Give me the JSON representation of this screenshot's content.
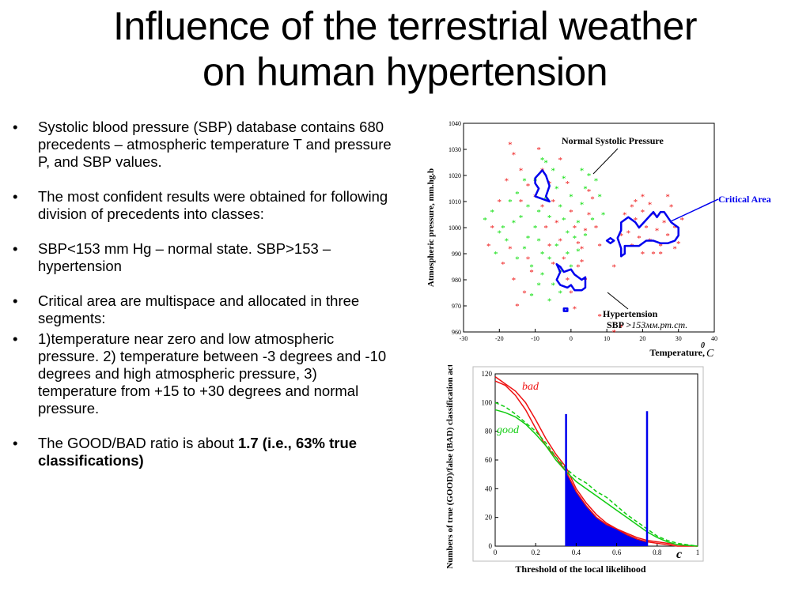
{
  "slide": {
    "title_line1": "Influence of the terrestrial weather",
    "title_line2": "on human hypertension",
    "bullets": [
      "Systolic blood pressure (SBP) database contains 680 precedents – atmospheric temperature T and pressure P, and SBP values.",
      "The most confident results were obtained for following division of precedents into classes:",
      "SBP<153 mm Hg – normal state. SBP>153 – hypertension",
      "Critical area are multispace and allocated in three segments:",
      "1)temperature near zero and low atmospheric pressure. 2) temperature between  -3 degrees and -10 degrees and high atmospheric pressure, 3) temperature from  +15 to +30 degrees and normal pressure."
    ],
    "last_bullet_prefix": "The GOOD/BAD ratio is about ",
    "last_bullet_bold": "1.7 (i.e., 63% true classifications)"
  },
  "chart_data": [
    {
      "type": "scatter",
      "xlabel": "Temperature,",
      "xlabel_unit": "C",
      "xlabel_unit_sup": "0",
      "ylabel": "Atmospheric pressure, mm.hg.b",
      "xlim": [
        -30,
        40
      ],
      "ylim": [
        960,
        1040
      ],
      "xticks": [
        "-30",
        "-20",
        "-10",
        "0",
        "10",
        "20",
        "30",
        "40"
      ],
      "yticks": [
        "960",
        "970",
        "980",
        "990",
        "1000",
        "1010",
        "1020",
        "1030",
        "1040"
      ],
      "annotations": {
        "normal": "Normal Systolic Pressure",
        "critical": "Critical Area",
        "hyper": "Hypertension",
        "sbp_prefix": "SBP >",
        "sbp_value": "153мм.рт.ст."
      },
      "series": [
        {
          "name": "normal",
          "color": "#00dd00",
          "marker": "*",
          "points": [
            [
              -22,
              1006
            ],
            [
              -24,
              1003
            ],
            [
              -20,
              998
            ],
            [
              -18,
              995
            ],
            [
              -21,
              990
            ],
            [
              -15,
              1013
            ],
            [
              -13,
              1018
            ],
            [
              -12,
              1008
            ],
            [
              -10,
              1000
            ],
            [
              -9,
              995
            ],
            [
              -8,
              990
            ],
            [
              -11,
              985
            ],
            [
              -13,
              992
            ],
            [
              -7,
              1025
            ],
            [
              -5,
              1022
            ],
            [
              -4,
              1015
            ],
            [
              -3,
              1008
            ],
            [
              -2,
              1003
            ],
            [
              -1,
              998
            ],
            [
              -4,
              993
            ],
            [
              -6,
              988
            ],
            [
              -8,
              982
            ],
            [
              -5,
              978
            ],
            [
              -3,
              983
            ],
            [
              -1,
              990
            ],
            [
              1,
              996
            ],
            [
              2,
              1002
            ],
            [
              3,
              1009
            ],
            [
              4,
              1015
            ],
            [
              5,
              1020
            ],
            [
              7,
              1018
            ],
            [
              8,
              1012
            ],
            [
              9,
              1005
            ],
            [
              -7,
              1011
            ],
            [
              -6,
              1004
            ],
            [
              -9,
              1006
            ],
            [
              0,
              1012
            ],
            [
              -2,
              1019
            ],
            [
              -14,
              1004
            ],
            [
              -16,
              1002
            ],
            [
              -12,
              996
            ],
            [
              -15,
              988
            ],
            [
              -9,
              978
            ],
            [
              -6,
              972
            ],
            [
              -3,
              975
            ],
            [
              0,
              985
            ],
            [
              2,
              991
            ],
            [
              4,
              997
            ],
            [
              6,
              1003
            ],
            [
              -10,
              1018
            ],
            [
              -8,
              1026
            ],
            [
              3,
              1022
            ],
            [
              -17,
              1010
            ],
            [
              -19,
              1000
            ],
            [
              -11,
              974
            ]
          ]
        },
        {
          "name": "hypertension",
          "color": "#ee1111",
          "marker": "*",
          "points": [
            [
              -17,
              1032
            ],
            [
              -16,
              1028
            ],
            [
              -14,
              1022
            ],
            [
              -12,
              1016
            ],
            [
              -18,
              1018
            ],
            [
              -20,
              1010
            ],
            [
              -22,
              1000
            ],
            [
              -23,
              993
            ],
            [
              -19,
              986
            ],
            [
              -17,
              992
            ],
            [
              -16,
              980
            ],
            [
              -15,
              970
            ],
            [
              -13,
              975
            ],
            [
              -11,
              983
            ],
            [
              -9,
              1030
            ],
            [
              -8,
              1022
            ],
            [
              -6,
              1017
            ],
            [
              -5,
              1010
            ],
            [
              -4,
              1002
            ],
            [
              -3,
              995
            ],
            [
              -2,
              988
            ],
            [
              -1,
              980
            ],
            [
              0,
              975
            ],
            [
              1,
              969
            ],
            [
              2,
              985
            ],
            [
              3,
              992
            ],
            [
              4,
              999
            ],
            [
              5,
              1005
            ],
            [
              6,
              1011
            ],
            [
              -3,
              1026
            ],
            [
              -1,
              1017
            ],
            [
              0,
              1006
            ],
            [
              1,
              1000
            ],
            [
              2,
              994
            ],
            [
              3,
              987
            ],
            [
              4,
              980
            ],
            [
              5,
              1014
            ],
            [
              7,
              1000
            ],
            [
              8,
              993
            ],
            [
              -7,
              1000
            ],
            [
              -6,
              993
            ],
            [
              -5,
              986
            ],
            [
              -8,
              1008
            ],
            [
              -10,
              1012
            ],
            [
              15,
              1005
            ],
            [
              16,
              998
            ],
            [
              17,
              993
            ],
            [
              18,
              1003
            ],
            [
              19,
              996
            ],
            [
              20,
              990
            ],
            [
              21,
              1000
            ],
            [
              22,
              995
            ],
            [
              23,
              1005
            ],
            [
              24,
              999
            ],
            [
              25,
              993
            ],
            [
              26,
              1002
            ],
            [
              27,
              997
            ],
            [
              28,
              1008
            ],
            [
              29,
              1000
            ],
            [
              30,
              994
            ],
            [
              31,
              1003
            ],
            [
              18,
              1010
            ],
            [
              22,
              1009
            ],
            [
              25,
              990
            ],
            [
              27,
              1012
            ],
            [
              14,
              997
            ],
            [
              17,
              1008
            ],
            [
              20,
              1006
            ],
            [
              23,
              990
            ],
            [
              29,
              992
            ],
            [
              12,
              985
            ],
            [
              8,
              966
            ],
            [
              14,
              962
            ],
            [
              12,
              960
            ],
            [
              20,
              1012
            ],
            [
              -14,
              1010
            ],
            [
              -12,
              988
            ]
          ]
        }
      ],
      "critical_regions_color": "#0000ee",
      "critical_regions": [
        [
          [
            -10,
            1019
          ],
          [
            -8,
            1022
          ],
          [
            -7,
            1020
          ],
          [
            -6,
            1016
          ],
          [
            -7,
            1012
          ],
          [
            -6,
            1010
          ],
          [
            -8,
            1011
          ],
          [
            -10,
            1012
          ],
          [
            -9,
            1015
          ],
          [
            -10,
            1017
          ],
          [
            -10,
            1019
          ]
        ],
        [
          [
            -4,
            986
          ],
          [
            -3,
            985
          ],
          [
            -2,
            983
          ],
          [
            0,
            984
          ],
          [
            1,
            982
          ],
          [
            3,
            980
          ],
          [
            4,
            981
          ],
          [
            4,
            977
          ],
          [
            3,
            976
          ],
          [
            1,
            976
          ],
          [
            0,
            978
          ],
          [
            -1,
            977
          ],
          [
            -3,
            978
          ],
          [
            -4,
            980
          ],
          [
            -3,
            983
          ],
          [
            -4,
            986
          ]
        ],
        [
          [
            14,
            1002
          ],
          [
            16,
            1004
          ],
          [
            18,
            1002
          ],
          [
            19,
            1000
          ],
          [
            21,
            1003
          ],
          [
            23,
            1006
          ],
          [
            24,
            1004
          ],
          [
            25,
            1006
          ],
          [
            26,
            1006
          ],
          [
            27,
            1004
          ],
          [
            28,
            1002
          ],
          [
            29,
            1001
          ],
          [
            30,
            1000
          ],
          [
            30,
            997
          ],
          [
            29,
            995
          ],
          [
            27,
            994
          ],
          [
            25,
            994
          ],
          [
            23,
            995
          ],
          [
            21,
            995
          ],
          [
            19,
            993
          ],
          [
            17,
            993
          ],
          [
            15,
            993
          ],
          [
            15,
            990
          ],
          [
            14,
            989
          ],
          [
            14,
            992
          ],
          [
            13,
            996
          ],
          [
            14,
            999
          ],
          [
            14,
            1002
          ]
        ],
        [
          [
            10,
            995
          ],
          [
            11,
            996
          ],
          [
            12,
            995
          ],
          [
            11,
            994
          ],
          [
            10,
            995
          ]
        ],
        [
          [
            -2,
            969
          ],
          [
            -1,
            969
          ],
          [
            -1,
            968
          ],
          [
            -2,
            968
          ],
          [
            -2,
            969
          ]
        ]
      ]
    },
    {
      "type": "line",
      "xlabel": "Threshold of the local likelihood",
      "ylabel": "Numbers of true (GOOD)/false (BAD) classification acts",
      "xlim": [
        0,
        1
      ],
      "ylim": [
        0,
        120
      ],
      "xticks": [
        "0",
        "0.2",
        "0.4",
        "0.6",
        "0.8",
        "1"
      ],
      "yticks": [
        "0",
        "20",
        "40",
        "60",
        "80",
        "100",
        "120"
      ],
      "corner_label": "c",
      "series": [
        {
          "name": "bad",
          "color": "#ee1111",
          "x": [
            0,
            0.05,
            0.1,
            0.15,
            0.2,
            0.25,
            0.3,
            0.35,
            0.4,
            0.45,
            0.5,
            0.55,
            0.6,
            0.65,
            0.7,
            0.75,
            0.8,
            0.85,
            0.9,
            1.0
          ],
          "y": [
            115,
            112,
            105,
            95,
            82,
            70,
            62,
            52,
            38,
            28,
            20,
            15,
            12,
            8,
            5,
            3,
            2,
            1,
            0,
            0
          ]
        },
        {
          "name": "bad_2",
          "color": "#ee1111",
          "x": [
            0,
            0.05,
            0.1,
            0.15,
            0.2,
            0.25,
            0.3,
            0.35,
            0.4,
            0.45,
            0.5,
            0.55,
            0.6,
            0.65,
            0.7,
            0.75,
            0.8,
            0.85,
            0.9,
            1.0
          ],
          "y": [
            118,
            113,
            108,
            100,
            88,
            75,
            64,
            55,
            40,
            30,
            22,
            16,
            12,
            9,
            6,
            4,
            3,
            2,
            1,
            0
          ]
        },
        {
          "name": "good",
          "color": "#11cc11",
          "x": [
            0,
            0.05,
            0.1,
            0.15,
            0.2,
            0.25,
            0.3,
            0.35,
            0.4,
            0.45,
            0.5,
            0.55,
            0.6,
            0.65,
            0.7,
            0.75,
            0.8,
            0.85,
            0.9,
            1.0
          ],
          "y": [
            95,
            93,
            90,
            85,
            78,
            70,
            60,
            52,
            45,
            40,
            35,
            30,
            25,
            20,
            15,
            10,
            6,
            3,
            1,
            0
          ]
        },
        {
          "name": "good_2",
          "color": "#11cc11",
          "x": [
            0,
            0.05,
            0.1,
            0.15,
            0.2,
            0.25,
            0.3,
            0.35,
            0.4,
            0.45,
            0.5,
            0.55,
            0.6,
            0.65,
            0.7,
            0.75,
            0.8,
            0.85,
            0.9,
            1.0
          ],
          "y": [
            100,
            97,
            92,
            86,
            80,
            72,
            62,
            54,
            48,
            44,
            38,
            34,
            28,
            22,
            17,
            12,
            7,
            4,
            2,
            0
          ]
        }
      ],
      "labels": {
        "bad": "bad",
        "good": "good"
      },
      "shaded_region": {
        "x_from": 0.35,
        "x_to": 0.75,
        "color": "#0000ee"
      },
      "vlines": [
        {
          "x": 0.35,
          "y_top": 92,
          "color": "#0000ee"
        },
        {
          "x": 0.75,
          "y_top": 94,
          "color": "#0000ee"
        }
      ]
    }
  ]
}
